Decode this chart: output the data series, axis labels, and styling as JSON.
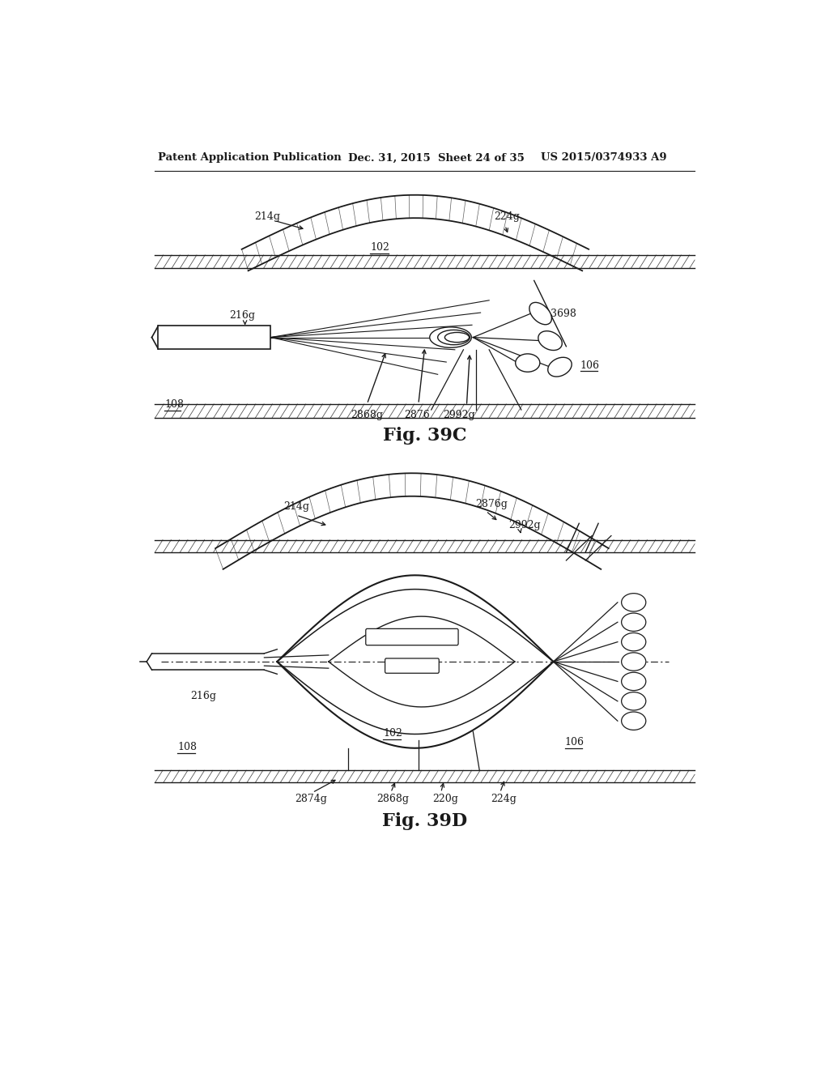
{
  "header_left": "Patent Application Publication",
  "header_mid": "Dec. 31, 2015  Sheet 24 of 35",
  "header_right": "US 2015/0374933 A9",
  "fig1_title": "Fig. 39C",
  "fig2_title": "Fig. 39D",
  "bg_color": "#ffffff",
  "line_color": "#1a1a1a"
}
